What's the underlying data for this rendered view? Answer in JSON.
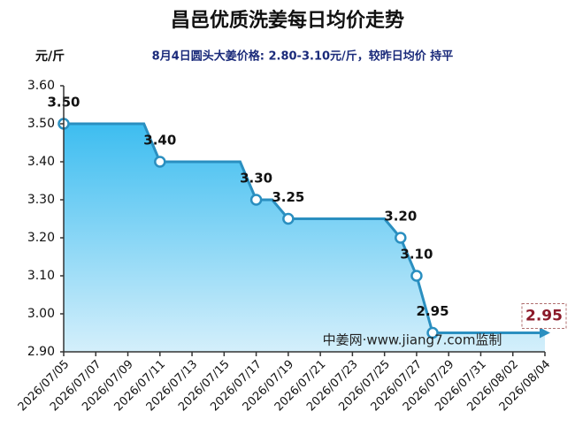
{
  "chart_data": {
    "type": "area-line",
    "title": "昌邑优质洗姜每日均价走势",
    "y_label": "元/斤",
    "subtitle": "8月4日圆头大姜价格: 2.80-3.10元/斤，较昨日均价 持平",
    "watermark": "中姜网·www.jiang7.com监制",
    "xlim": [
      "2026/07/05",
      "2026/08/04"
    ],
    "xticks": [
      "2026/07/05",
      "2026/07/07",
      "2026/07/09",
      "2026/07/11",
      "2026/07/13",
      "2026/07/15",
      "2026/07/17",
      "2026/07/19",
      "2026/07/21",
      "2026/07/23",
      "2026/07/25",
      "2026/07/27",
      "2026/07/29",
      "2026/07/31",
      "2026/08/02",
      "2026/08/04"
    ],
    "ylim": [
      2.9,
      3.6
    ],
    "yticks": [
      {
        "value": 2.9,
        "label": "2.90"
      },
      {
        "value": 3.0,
        "label": "3.00"
      },
      {
        "value": 3.1,
        "label": "3.10"
      },
      {
        "value": 3.2,
        "label": "3.20"
      },
      {
        "value": 3.3,
        "label": "3.30"
      },
      {
        "value": 3.4,
        "label": "3.40"
      },
      {
        "value": 3.5,
        "label": "3.50"
      },
      {
        "value": 3.6,
        "label": "3.60"
      }
    ],
    "series": [
      {
        "name": "均价",
        "color": "#2a8fc0",
        "x": [
          "2026/07/05",
          "2026/07/10",
          "2026/07/11",
          "2026/07/16",
          "2026/07/17",
          "2026/07/18",
          "2026/07/19",
          "2026/07/25",
          "2026/07/26",
          "2026/07/27",
          "2026/07/28",
          "2026/08/04"
        ],
        "values": [
          3.5,
          3.5,
          3.4,
          3.4,
          3.3,
          3.3,
          3.25,
          3.25,
          3.2,
          3.1,
          2.95,
          2.95
        ],
        "value_labels": [
          "3.50",
          null,
          "3.40",
          null,
          "3.30",
          null,
          "3.25",
          null,
          "3.20",
          "3.10",
          "2.95",
          "2.95"
        ]
      }
    ]
  }
}
